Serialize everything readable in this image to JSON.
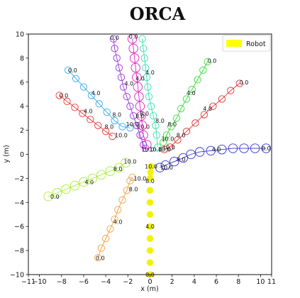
{
  "chart_data": {
    "type": "scatter",
    "title": "ORCA",
    "xlabel": "x (m)",
    "ylabel": "y (m)",
    "xlim": [
      -11,
      11
    ],
    "ylim": [
      -10,
      10
    ],
    "xticks": [
      -11,
      -10,
      -8,
      -6,
      -4,
      -2,
      0,
      2,
      4,
      6,
      8,
      10,
      11
    ],
    "xtick_labels": [
      "−11",
      "−10",
      "−8",
      "−6",
      "−4",
      "−2",
      "0",
      "2",
      "4",
      "6",
      "8",
      "10",
      "11"
    ],
    "yticks": [
      -10,
      -8,
      -6,
      -4,
      -2,
      0,
      2,
      4,
      6,
      8,
      10
    ],
    "ytick_labels": [
      "−10",
      "−8",
      "−6",
      "−4",
      "−2",
      "0",
      "2",
      "4",
      "6",
      "8",
      "10"
    ],
    "legend": {
      "position": "top-right",
      "entries": [
        {
          "label": "Robot",
          "color": "#ffff00"
        }
      ]
    },
    "series": [
      {
        "name": "Robot",
        "color": "#f2f200",
        "filled": true,
        "radius": 0.3,
        "points": [
          [
            0,
            -10
          ],
          [
            0,
            -9
          ],
          [
            0,
            -8
          ],
          [
            0,
            -7
          ],
          [
            0,
            -6
          ],
          [
            0,
            -5
          ],
          [
            0,
            -4
          ],
          [
            0,
            -3
          ],
          [
            0,
            -2
          ],
          [
            0.05,
            -1.5
          ],
          [
            0.1,
            -1
          ]
        ],
        "labels": [
          {
            "x": 0,
            "y": -10,
            "text": "0.0"
          },
          {
            "x": 0,
            "y": -6,
            "text": "4.0"
          },
          {
            "x": 0,
            "y": -2.2,
            "text": "8.0"
          },
          {
            "x": 0.1,
            "y": -1,
            "text": "10.0"
          }
        ]
      },
      {
        "color": "#3333cc",
        "filled": false,
        "radius": 0.4,
        "points": [
          [
            10.5,
            0.5
          ],
          [
            9.5,
            0.5
          ],
          [
            8.5,
            0.5
          ],
          [
            7.5,
            0.5
          ],
          [
            6.5,
            0.4
          ],
          [
            5.5,
            0.3
          ],
          [
            4.5,
            0.2
          ],
          [
            3.7,
            0
          ],
          [
            3,
            -0.3
          ],
          [
            2.2,
            -0.6
          ],
          [
            1.4,
            -0.9
          ],
          [
            0.9,
            -1.1
          ]
        ],
        "labels": [
          {
            "x": 10.5,
            "y": 0.5,
            "text": "0.0"
          },
          {
            "x": 6,
            "y": 0.4,
            "text": "4.0"
          },
          {
            "x": 2.8,
            "y": -0.4,
            "text": "8.0"
          },
          {
            "x": 1.5,
            "y": -1.1,
            "text": "10.0"
          }
        ]
      },
      {
        "color": "#e03030",
        "filled": false,
        "radius": 0.3,
        "points": [
          [
            8.1,
            5.9
          ],
          [
            7.3,
            5.3
          ],
          [
            6.5,
            4.6
          ],
          [
            5.7,
            4
          ],
          [
            4.9,
            3.3
          ],
          [
            4.1,
            2.6
          ],
          [
            3.3,
            1.9
          ],
          [
            2.5,
            1.2
          ],
          [
            1.8,
            0.6
          ],
          [
            1.3,
            0.4
          ]
        ],
        "labels": [
          {
            "x": 8.5,
            "y": 6,
            "text": "0.0"
          },
          {
            "x": 5.2,
            "y": 3.8,
            "text": "4.0"
          },
          {
            "x": 2.8,
            "y": 1.6,
            "text": "8.0"
          },
          {
            "x": 1.7,
            "y": 0.6,
            "text": "10.0"
          }
        ]
      },
      {
        "color": "#33dd33",
        "filled": false,
        "radius": 0.3,
        "points": [
          [
            5.2,
            7.7
          ],
          [
            4.8,
            7
          ],
          [
            4.3,
            6.2
          ],
          [
            3.8,
            5.4
          ],
          [
            3.3,
            4.6
          ],
          [
            2.8,
            3.8
          ],
          [
            2.4,
            3
          ],
          [
            1.9,
            2.3
          ],
          [
            1.5,
            1.6
          ],
          [
            1.2,
            1
          ]
        ],
        "labels": [
          {
            "x": 5.6,
            "y": 7.8,
            "text": "0.0"
          },
          {
            "x": 3.7,
            "y": 5.1,
            "text": "4.0"
          },
          {
            "x": 2,
            "y": 2.5,
            "text": "8.0"
          },
          {
            "x": 1.6,
            "y": 1.3,
            "text": "10.0"
          }
        ]
      },
      {
        "color": "#33e0b0",
        "filled": false,
        "radius": 0.3,
        "points": [
          [
            -0.7,
            9.6
          ],
          [
            -0.6,
            8.8
          ],
          [
            -0.5,
            8
          ],
          [
            -0.4,
            7.2
          ],
          [
            -0.3,
            6.4
          ],
          [
            -0.2,
            5.6
          ],
          [
            -0.1,
            4.8
          ],
          [
            0.1,
            4
          ],
          [
            0.3,
            3.2
          ],
          [
            0.5,
            2.4
          ],
          [
            0.6,
            1.6
          ],
          [
            0.7,
            0.6
          ]
        ],
        "labels": [
          {
            "x": 0,
            "y": 6.8,
            "text": "4.0"
          },
          {
            "x": 0.9,
            "y": 2.8,
            "text": "8.0"
          },
          {
            "x": 1.3,
            "y": 0.4,
            "text": "10.0"
          }
        ]
      },
      {
        "color": "#e020c0",
        "filled": false,
        "radius": 0.4,
        "points": [
          [
            -1.6,
            9.6
          ],
          [
            -1.5,
            8.8
          ],
          [
            -1.4,
            8
          ],
          [
            -1.3,
            7.2
          ],
          [
            -1.2,
            6.4
          ],
          [
            -1.1,
            5.6
          ],
          [
            -1,
            4.8
          ],
          [
            -0.9,
            4
          ],
          [
            -0.8,
            3.2
          ],
          [
            -0.7,
            2.4
          ],
          [
            -0.6,
            1.6
          ],
          [
            -0.3,
            0.8
          ]
        ],
        "labels": [
          {
            "x": -1.5,
            "y": 9.8,
            "text": "0.0"
          },
          {
            "x": -0.9,
            "y": 6.3,
            "text": "4.0"
          },
          {
            "x": -0.5,
            "y": 3.4,
            "text": "8.0"
          },
          {
            "x": -0.6,
            "y": 2.3,
            "text": "10.0"
          },
          {
            "x": 0.5,
            "y": 0.4,
            "text": "10.0"
          }
        ]
      },
      {
        "color": "#9933dd",
        "filled": false,
        "radius": 0.3,
        "points": [
          [
            -3.3,
            9.6
          ],
          [
            -3.2,
            8.8
          ],
          [
            -3,
            8
          ],
          [
            -2.8,
            7.2
          ],
          [
            -2.6,
            6.4
          ],
          [
            -2.4,
            5.6
          ],
          [
            -2.1,
            4.8
          ],
          [
            -1.8,
            4
          ],
          [
            -1.5,
            3.2
          ],
          [
            -1.2,
            2.4
          ],
          [
            -0.9,
            1.6
          ],
          [
            -0.6,
            0.8
          ],
          [
            -0.4,
            0.5
          ]
        ],
        "labels": [
          {
            "x": -3.2,
            "y": 9.7,
            "text": "0.0"
          },
          {
            "x": -1.9,
            "y": 5.9,
            "text": "4.0"
          },
          {
            "x": -0.9,
            "y": 3.2,
            "text": "8.0"
          },
          {
            "x": -0.2,
            "y": 0.4,
            "text": "10.0"
          }
        ]
      },
      {
        "color": "#33aaee",
        "filled": false,
        "radius": 0.3,
        "points": [
          [
            -7.4,
            7
          ],
          [
            -6.7,
            6.3
          ],
          [
            -6,
            5.6
          ],
          [
            -5.3,
            4.9
          ],
          [
            -4.6,
            4.2
          ],
          [
            -3.9,
            3.5
          ],
          [
            -3.2,
            2.8
          ],
          [
            -2.5,
            2.3
          ],
          [
            -1.8,
            2.2
          ]
        ],
        "labels": [
          {
            "x": -7,
            "y": 7,
            "text": "0.0"
          },
          {
            "x": -4.9,
            "y": 5.1,
            "text": "4.0"
          },
          {
            "x": -3,
            "y": 3.3,
            "text": "8.0"
          },
          {
            "x": -1.6,
            "y": 2.5,
            "text": "10.0"
          }
        ]
      },
      {
        "color": "#ee3333",
        "filled": false,
        "radius": 0.3,
        "points": [
          [
            -8.2,
            4.9
          ],
          [
            -7.5,
            4.4
          ],
          [
            -6.8,
            3.9
          ],
          [
            -6.1,
            3.4
          ],
          [
            -5.4,
            2.9
          ],
          [
            -4.7,
            2.4
          ],
          [
            -4,
            1.9
          ],
          [
            -3.4,
            1.5
          ]
        ],
        "labels": [
          {
            "x": -7.8,
            "y": 4.9,
            "text": "0.0"
          },
          {
            "x": -5.6,
            "y": 3.6,
            "text": "4.0"
          },
          {
            "x": -3.7,
            "y": 2.3,
            "text": "8.0"
          },
          {
            "x": -2.6,
            "y": 1.6,
            "text": "10.0"
          }
        ]
      },
      {
        "color": "#aaee33",
        "filled": false,
        "radius": 0.4,
        "points": [
          [
            -9.2,
            -3.5
          ],
          [
            -8.4,
            -3.2
          ],
          [
            -7.6,
            -2.9
          ],
          [
            -6.8,
            -2.6
          ],
          [
            -6,
            -2.3
          ],
          [
            -5.2,
            -2
          ],
          [
            -4.4,
            -1.7
          ],
          [
            -3.6,
            -1.4
          ],
          [
            -2.8,
            -1.1
          ],
          [
            -2.2,
            -0.7
          ]
        ],
        "labels": [
          {
            "x": -8.6,
            "y": -3.5,
            "text": "0.0"
          },
          {
            "x": -5.5,
            "y": -2.3,
            "text": "4.0"
          },
          {
            "x": -2.9,
            "y": -1.2,
            "text": "8.0"
          },
          {
            "x": -1.8,
            "y": -0.6,
            "text": "10.0"
          }
        ]
      },
      {
        "color": "#f0a040",
        "filled": false,
        "radius": 0.3,
        "points": [
          [
            -4.7,
            -8.6
          ],
          [
            -4.4,
            -7.8
          ],
          [
            -4,
            -7
          ],
          [
            -3.6,
            -6.2
          ],
          [
            -3.2,
            -5.4
          ],
          [
            -2.9,
            -4.6
          ],
          [
            -2.5,
            -3.8
          ],
          [
            -2.1,
            -3
          ],
          [
            -1.8,
            -2.2
          ],
          [
            -1.6,
            -1.9
          ]
        ],
        "labels": [
          {
            "x": -4.5,
            "y": -8.6,
            "text": "0.0"
          },
          {
            "x": -2.9,
            "y": -5.6,
            "text": "4.0"
          },
          {
            "x": -1.5,
            "y": -2.9,
            "text": "8.0"
          },
          {
            "x": -0.9,
            "y": -2,
            "text": "10.0"
          }
        ]
      }
    ]
  }
}
